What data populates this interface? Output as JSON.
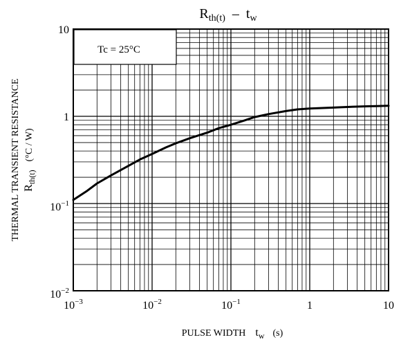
{
  "chart_data": {
    "type": "line",
    "title": "R",
    "title_sub": "th(t)",
    "title_sep": "–",
    "title_var": "t",
    "title_var_sub": "w",
    "xlabel": "PULSE WIDTH",
    "xlabel_var": "t",
    "xlabel_var_sub": "w",
    "xlabel_unit": "(s)",
    "ylabel_line1": "THERMAL TRANSIENT RESISTANCE",
    "ylabel_var": "R",
    "ylabel_var_sub": "th(t)",
    "ylabel_unit": "(°C / W)",
    "x_scale": "log",
    "y_scale": "log",
    "xlim": [
      0.001,
      10
    ],
    "ylim": [
      0.01,
      10
    ],
    "x_ticks": [
      {
        "value": 0.001,
        "base": "10",
        "exp": "−3"
      },
      {
        "value": 0.01,
        "base": "10",
        "exp": "−2"
      },
      {
        "value": 0.1,
        "base": "10",
        "exp": "−1"
      },
      {
        "value": 1,
        "base": "1",
        "exp": ""
      },
      {
        "value": 10,
        "base": "10",
        "exp": ""
      }
    ],
    "y_ticks": [
      {
        "value": 10,
        "base": "10",
        "exp": ""
      },
      {
        "value": 1,
        "base": "1",
        "exp": ""
      },
      {
        "value": 0.1,
        "base": "10",
        "exp": "−1"
      },
      {
        "value": 0.01,
        "base": "10",
        "exp": "−2"
      }
    ],
    "grid": true,
    "legend": {
      "text": "Tc = 25°C",
      "placement": "top-left"
    },
    "series": [
      {
        "x": [
          0.001,
          0.0015,
          0.002,
          0.003,
          0.005,
          0.007,
          0.01,
          0.015,
          0.02,
          0.03,
          0.05,
          0.07,
          0.1,
          0.15,
          0.2,
          0.3,
          0.5,
          0.7,
          1,
          2,
          3,
          5,
          7,
          10
        ],
        "y": [
          0.11,
          0.14,
          0.17,
          0.21,
          0.27,
          0.32,
          0.37,
          0.44,
          0.49,
          0.56,
          0.65,
          0.73,
          0.8,
          0.9,
          0.98,
          1.06,
          1.15,
          1.2,
          1.23,
          1.26,
          1.28,
          1.3,
          1.31,
          1.32
        ]
      }
    ]
  }
}
